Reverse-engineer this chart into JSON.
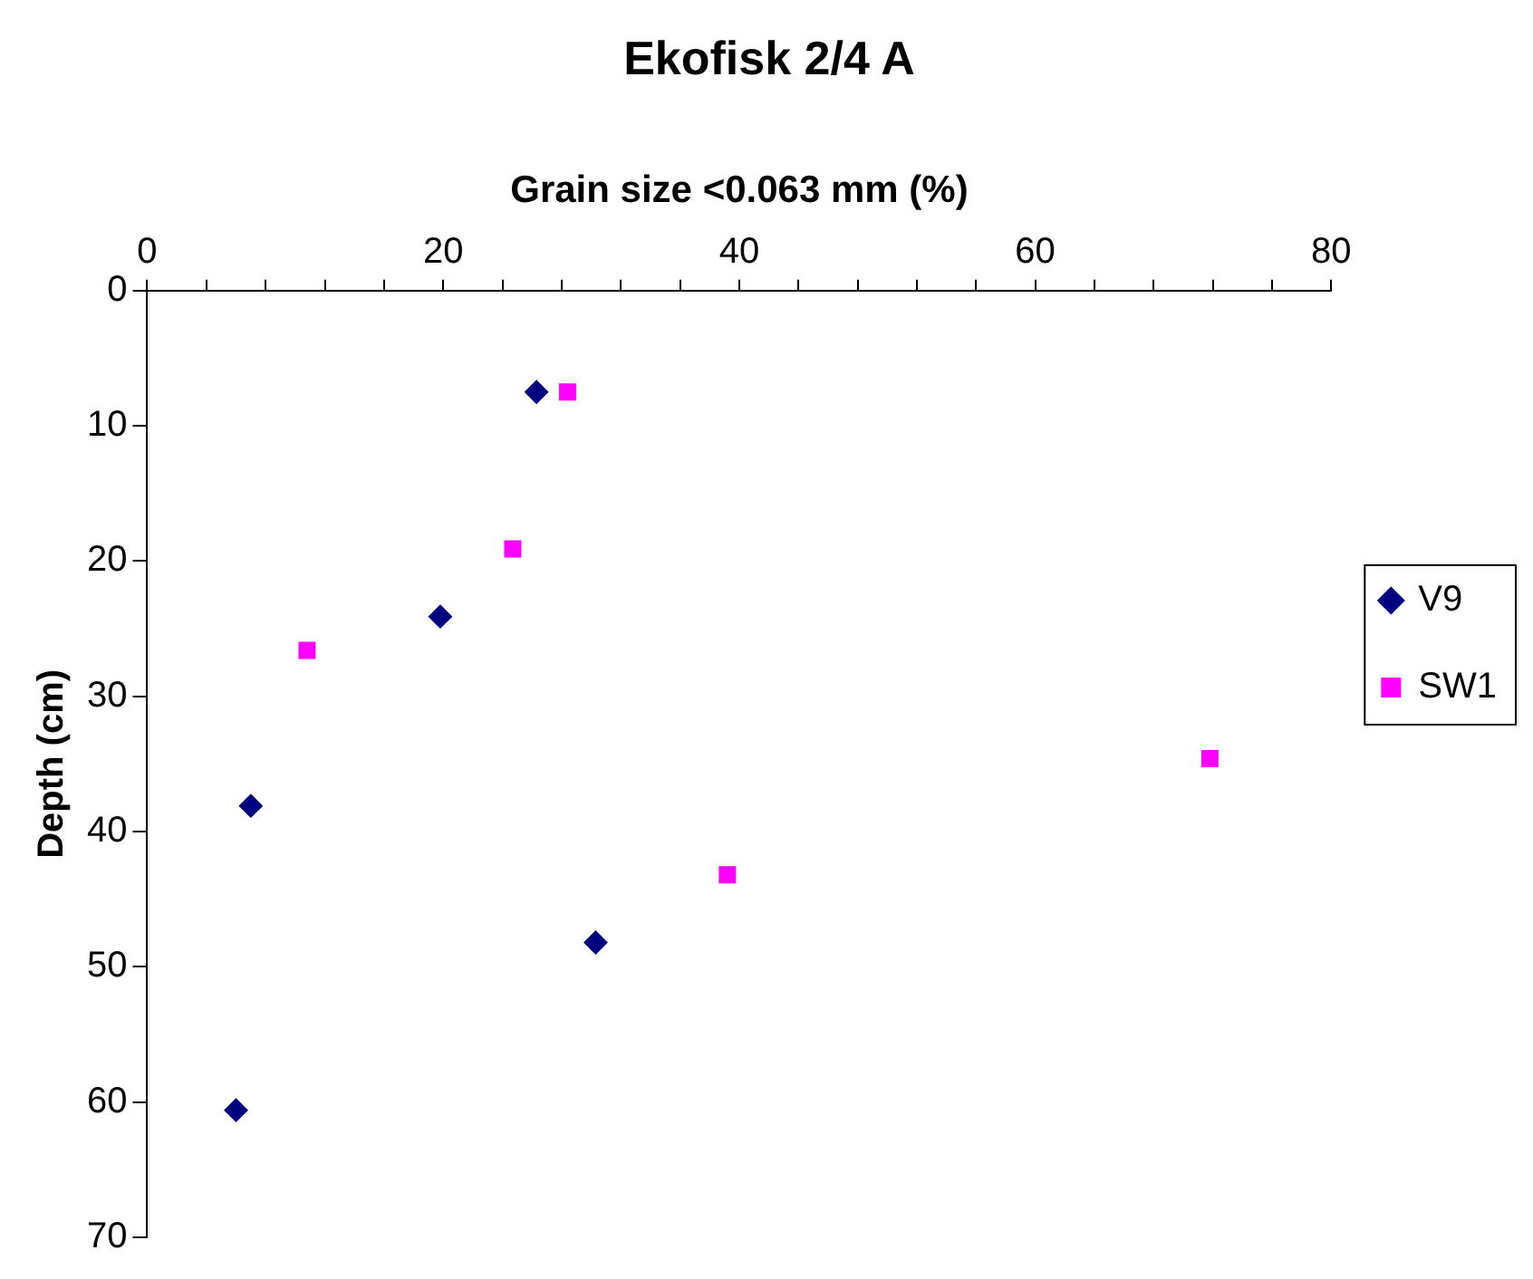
{
  "chart_data": {
    "type": "scatter",
    "title": "Ekofisk 2/4 A",
    "xlabel": "Grain size <0.063 mm (%)",
    "ylabel": "Depth (cm)",
    "xlim": [
      0,
      80
    ],
    "xticks": [
      0,
      {
        "value": 4,
        "label": null
      },
      {
        "value": 8,
        "label": null
      },
      {
        "value": 12,
        "label": null
      },
      {
        "value": 16,
        "label": null
      },
      20,
      {
        "value": 24,
        "label": null
      },
      {
        "value": 28,
        "label": null
      },
      {
        "value": 32,
        "label": null
      },
      {
        "value": 36,
        "label": null
      },
      40,
      {
        "value": 44,
        "label": null
      },
      {
        "value": 48,
        "label": null
      },
      {
        "value": 52,
        "label": null
      },
      {
        "value": 56,
        "label": null
      },
      60,
      {
        "value": 64,
        "label": null
      },
      {
        "value": 68,
        "label": null
      },
      {
        "value": 72,
        "label": null
      },
      {
        "value": 76,
        "label": null
      },
      80
    ],
    "ylim": [
      70,
      0
    ],
    "yticks": [
      0,
      10,
      20,
      30,
      40,
      50,
      60,
      70
    ],
    "grid": false,
    "legend": "right",
    "series": [
      {
        "name": "V9",
        "color": "#000080",
        "marker": "diamond",
        "x": [
          26.3,
          19.8,
          7.0,
          30.3,
          6.0
        ],
        "values": [
          7.5,
          24.1,
          38.1,
          48.2,
          60.6
        ]
      },
      {
        "name": "SW1",
        "color": "#ff00ff",
        "marker": "square",
        "x": [
          28.4,
          24.7,
          10.8,
          71.8,
          39.2
        ],
        "values": [
          7.5,
          19.1,
          26.6,
          34.6,
          43.2
        ]
      }
    ]
  }
}
